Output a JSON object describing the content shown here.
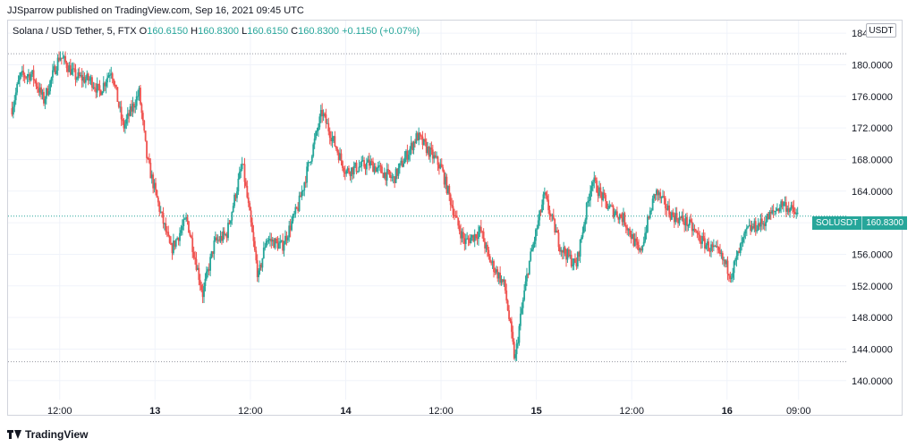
{
  "header": {
    "published": "JJSparrow published on TradingView.com, Sep 16, 2021 09:45 UTC"
  },
  "legend": {
    "symbol": "Solana / USD Tether, 5, FTX",
    "o_label": "O",
    "o": "160.6150",
    "h_label": "H",
    "h": "160.8300",
    "l_label": "L",
    "l": "160.6150",
    "c_label": "C",
    "c": "160.8300",
    "change": "+0.1150 (+0.07%)"
  },
  "unit": "USDT",
  "last_price": {
    "symbol": "SOLUSDT",
    "value": "160.8300"
  },
  "footer": {
    "brand": "TradingView"
  },
  "colors": {
    "up": "#26a69a",
    "down": "#ef5350",
    "grid": "#f0f3fa",
    "dotted": "#9598a1"
  },
  "chart_data": {
    "type": "line",
    "style": "candlestick",
    "title": "Solana / USD Tether, 5, FTX",
    "xlabel": "",
    "ylabel": "",
    "ylim": [
      137.6,
      185.6
    ],
    "yticks": [
      "140.0000",
      "144.0000",
      "148.0000",
      "152.0000",
      "156.0000",
      "160.0000",
      "164.0000",
      "168.0000",
      "172.0000",
      "176.0000",
      "180.0000",
      "184.0000"
    ],
    "xticks": [
      "12:00",
      "13",
      "12:00",
      "14",
      "12:00",
      "15",
      "12:00",
      "16",
      "09:00"
    ],
    "x_tick_hours": [
      12,
      24,
      36,
      48,
      60,
      72,
      84,
      96,
      105
    ],
    "x_range_hours": [
      5.5,
      111
    ],
    "reference_lines": [
      181.4,
      142.4
    ],
    "last_price": 160.83,
    "series": [
      {
        "x": [
          6,
          7,
          8.5,
          10,
          12,
          14,
          16,
          17,
          18.5,
          20,
          22,
          23,
          24.5,
          26,
          28,
          30,
          31.5,
          33,
          35,
          37,
          38,
          40,
          42,
          45,
          48,
          51,
          54,
          57,
          60,
          62,
          63,
          65,
          66,
          68,
          69.3,
          70,
          71,
          73,
          75,
          77,
          79,
          81,
          83,
          85,
          87,
          89,
          91,
          93,
          95,
          96.5,
          98.5,
          100.5,
          103,
          105
        ],
        "values": [
          174.5,
          178.5,
          178.8,
          175.5,
          181.2,
          178.5,
          178.0,
          176.5,
          179.5,
          172.0,
          176.5,
          168.0,
          162.0,
          156.5,
          160.5,
          151.0,
          157.5,
          158.5,
          167.5,
          153.0,
          158.0,
          157.0,
          162.0,
          174.0,
          166.5,
          167.5,
          165.5,
          171.0,
          167.0,
          160.0,
          157.5,
          159.0,
          155.5,
          152.0,
          142.5,
          148.0,
          154.5,
          163.5,
          157.0,
          154.5,
          165.5,
          162.0,
          160.5,
          156.0,
          164.0,
          161.0,
          160.0,
          157.5,
          156.0,
          153.5,
          159.0,
          160.0,
          162.5,
          160.8
        ]
      }
    ]
  }
}
